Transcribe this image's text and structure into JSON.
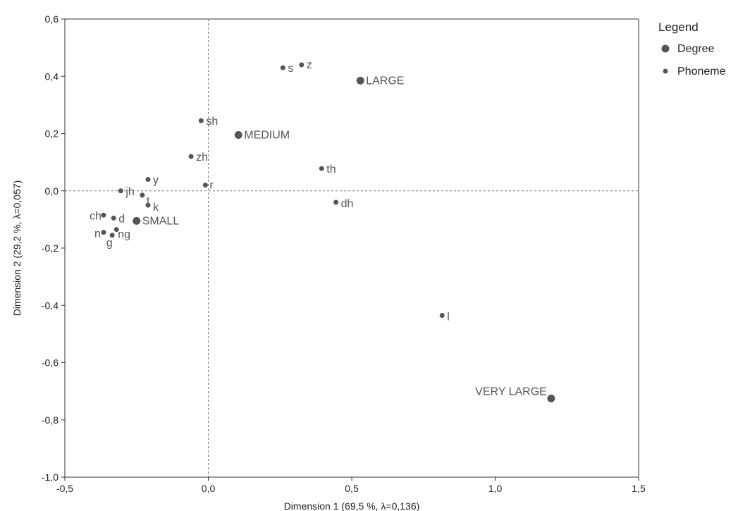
{
  "chart_data": {
    "type": "scatter",
    "xlabel": "Dimension 1  (69,5 %, λ=0,136)",
    "ylabel": "Dimension 2  (29,2 %, λ=0,057)",
    "xlim": [
      -0.5,
      1.5
    ],
    "ylim": [
      -1.0,
      0.6
    ],
    "x_ticks": [
      {
        "value": -0.5,
        "label": "-0,5"
      },
      {
        "value": 0.0,
        "label": "0,0"
      },
      {
        "value": 0.5,
        "label": "0,5"
      },
      {
        "value": 1.0,
        "label": "1,0"
      },
      {
        "value": 1.5,
        "label": "1,5"
      }
    ],
    "y_ticks": [
      {
        "value": 0.6,
        "label": "0,6"
      },
      {
        "value": 0.4,
        "label": "0,4"
      },
      {
        "value": 0.2,
        "label": "0,2"
      },
      {
        "value": 0.0,
        "label": "0,0"
      },
      {
        "value": -0.2,
        "label": "-0,2"
      },
      {
        "value": -0.4,
        "label": "-0,4"
      },
      {
        "value": -0.6,
        "label": "-0,6"
      },
      {
        "value": -0.8,
        "label": "-0,8"
      },
      {
        "value": -1.0,
        "label": "-1,0"
      }
    ],
    "reference_lines": {
      "x": 0,
      "y": 0,
      "style": "dashed"
    },
    "legend": {
      "title": "Legend",
      "position": "right",
      "entries": [
        {
          "name": "Degree",
          "color": "#555555"
        },
        {
          "name": "Phoneme",
          "color": "#555555"
        }
      ]
    },
    "series": [
      {
        "name": "Degree",
        "color": "#555555",
        "points": [
          {
            "label": "SMALL",
            "x": -0.25,
            "y": -0.105
          },
          {
            "label": "MEDIUM",
            "x": 0.105,
            "y": 0.195
          },
          {
            "label": "LARGE",
            "x": 0.53,
            "y": 0.385
          },
          {
            "label": "VERY LARGE",
            "x": 1.195,
            "y": -0.725
          }
        ]
      },
      {
        "name": "Phoneme",
        "color": "#555555",
        "points": [
          {
            "label": "s",
            "x": 0.26,
            "y": 0.43
          },
          {
            "label": "z",
            "x": 0.325,
            "y": 0.44
          },
          {
            "label": "sh",
            "x": -0.025,
            "y": 0.245
          },
          {
            "label": "zh",
            "x": -0.06,
            "y": 0.12
          },
          {
            "label": "th",
            "x": 0.395,
            "y": 0.078
          },
          {
            "label": "y",
            "x": -0.21,
            "y": 0.04
          },
          {
            "label": "r",
            "x": -0.01,
            "y": 0.02
          },
          {
            "label": "jh",
            "x": -0.305,
            "y": 0.0
          },
          {
            "label": "t",
            "x": -0.23,
            "y": -0.015
          },
          {
            "label": "k",
            "x": -0.21,
            "y": -0.05
          },
          {
            "label": "dh",
            "x": 0.445,
            "y": -0.04
          },
          {
            "label": "ch",
            "x": -0.365,
            "y": -0.085
          },
          {
            "label": "d",
            "x": -0.33,
            "y": -0.095
          },
          {
            "label": "n",
            "x": -0.365,
            "y": -0.145
          },
          {
            "label": "g",
            "x": -0.335,
            "y": -0.155
          },
          {
            "label": "ng",
            "x": -0.32,
            "y": -0.135
          },
          {
            "label": "l",
            "x": 0.815,
            "y": -0.435
          }
        ]
      }
    ]
  }
}
